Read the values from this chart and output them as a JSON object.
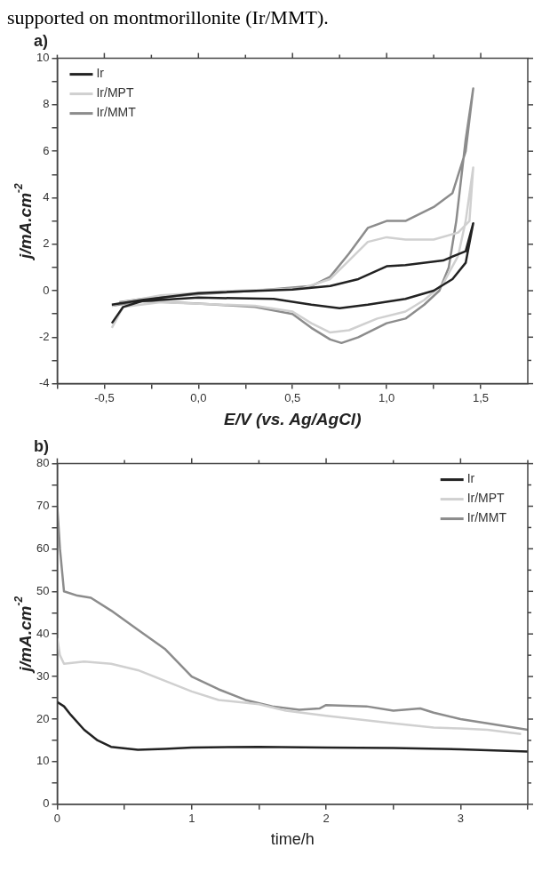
{
  "chart_data": [
    {
      "type": "line",
      "title": "a)",
      "xlabel": "E/V (vs. Ag/AgCl)",
      "ylabel": "j/mA.cm$^{-2}$",
      "annotations": [
        "supported on montmorillonite (Ir/MMT)."
      ],
      "xlim": [
        -0.75,
        1.75
      ],
      "ylim": [
        -4,
        10
      ],
      "xticks": [
        {
          "value": -0.75,
          "label": null
        },
        {
          "value": -0.5,
          "label": "-0,5"
        },
        {
          "value": -0.25,
          "label": null
        },
        {
          "value": 0,
          "label": "0,0"
        },
        {
          "value": 0.25,
          "label": null
        },
        {
          "value": 0.5,
          "label": "0,5"
        },
        {
          "value": 0.75,
          "label": null
        },
        {
          "value": 1,
          "label": "1,0"
        },
        {
          "value": 1.25,
          "label": null
        },
        {
          "value": 1.5,
          "label": "1,5"
        }
      ],
      "yticks": [
        -4,
        {
          "value": -3,
          "label": null
        },
        -2,
        {
          "value": -1,
          "label": null
        },
        0,
        {
          "value": 1,
          "label": null
        },
        2,
        {
          "value": 3,
          "label": null
        },
        4,
        {
          "value": 5,
          "label": null
        },
        6,
        {
          "value": 7,
          "label": null
        },
        8,
        {
          "value": 9,
          "label": null
        },
        10
      ],
      "grid": false,
      "legend": "top left",
      "marker": "none",
      "line_style": "solid",
      "series": [
        {
          "name": "Ir",
          "color": "#222222",
          "x": [
            -0.46,
            -0.4,
            -0.3,
            0,
            0.4,
            0.6,
            0.75,
            0.9,
            1.1,
            1.25,
            1.35,
            1.42,
            1.46,
            1.42,
            1.3,
            1.1,
            1.0,
            0.85,
            0.7,
            0.5,
            0,
            -0.3,
            -0.46
          ],
          "values": [
            -1.4,
            -0.7,
            -0.45,
            -0.3,
            -0.35,
            -0.6,
            -0.75,
            -0.6,
            -0.35,
            0,
            0.5,
            1.2,
            2.9,
            1.7,
            1.3,
            1.1,
            1.05,
            0.5,
            0.2,
            0.05,
            -0.1,
            -0.4,
            -0.6
          ]
        },
        {
          "name": "Ir/MPT",
          "color": "#d0d0d0",
          "x": [
            -0.46,
            -0.4,
            -0.2,
            0.3,
            0.5,
            0.6,
            0.7,
            0.8,
            0.95,
            1.1,
            1.2,
            1.3,
            1.38,
            1.42,
            1.46,
            1.44,
            1.38,
            1.25,
            1.1,
            1.0,
            0.9,
            0.8,
            0.7,
            0.55,
            0.2,
            -0.2,
            -0.4,
            -0.46
          ],
          "values": [
            -1.6,
            -0.7,
            -0.5,
            -0.65,
            -0.9,
            -1.4,
            -1.8,
            -1.7,
            -1.2,
            -0.9,
            -0.4,
            0.3,
            1.5,
            3,
            5.3,
            3,
            2.5,
            2.2,
            2.2,
            2.3,
            2.1,
            1.3,
            0.5,
            0.1,
            0,
            -0.2,
            -0.5,
            -0.65
          ]
        },
        {
          "name": "Ir/MMT",
          "color": "#8c8c8c",
          "x": [
            -0.46,
            -0.3,
            0,
            0.3,
            0.5,
            0.6,
            0.7,
            0.76,
            0.85,
            1.0,
            1.1,
            1.2,
            1.28,
            1.33,
            1.37,
            1.42,
            1.46,
            1.42,
            1.35,
            1.25,
            1.1,
            1.0,
            0.9,
            0.8,
            0.7,
            0.6,
            0.3,
            0,
            -0.3,
            -0.42
          ],
          "values": [
            -0.65,
            -0.45,
            -0.55,
            -0.7,
            -1.0,
            -1.6,
            -2.1,
            -2.25,
            -2.0,
            -1.4,
            -1.2,
            -0.6,
            0,
            1,
            3,
            6.5,
            8.7,
            6,
            4.2,
            3.6,
            3.0,
            3.0,
            2.7,
            1.6,
            0.6,
            0.2,
            0,
            -0.15,
            -0.35,
            -0.5
          ]
        }
      ]
    },
    {
      "type": "line",
      "title": "b)",
      "xlabel": "time/h",
      "ylabel": "j/mA.cm$^{-2}$",
      "xlim": [
        0,
        3.5
      ],
      "ylim": [
        0,
        80
      ],
      "xticks": [
        0,
        {
          "value": 0.5,
          "label": null
        },
        1,
        {
          "value": 1.5,
          "label": null
        },
        2,
        {
          "value": 2.5,
          "label": null
        },
        3,
        {
          "value": 3.5,
          "label": null
        }
      ],
      "yticks": [
        0,
        {
          "value": 5,
          "label": null
        },
        10,
        {
          "value": 15,
          "label": null
        },
        20,
        {
          "value": 25,
          "label": null
        },
        30,
        {
          "value": 35,
          "label": null
        },
        40,
        {
          "value": 45,
          "label": null
        },
        50,
        {
          "value": 55,
          "label": null
        },
        60,
        {
          "value": 65,
          "label": null
        },
        70,
        {
          "value": 75,
          "label": null
        },
        80
      ],
      "grid": false,
      "legend": "top right",
      "marker": "none",
      "line_style": "solid",
      "series": [
        {
          "name": "Ir",
          "color": "#222222",
          "x": [
            0,
            0.05,
            0.1,
            0.2,
            0.3,
            0.4,
            0.6,
            0.8,
            1.0,
            1.5,
            2.0,
            2.5,
            3.0,
            3.5
          ],
          "values": [
            24,
            23,
            21,
            17.5,
            15,
            13.5,
            12.8,
            13,
            13.3,
            13.5,
            13.3,
            13.2,
            12.9,
            12.4
          ]
        },
        {
          "name": "Ir/MPT",
          "color": "#d0d0d0",
          "x": [
            0,
            0.02,
            0.05,
            0.2,
            0.4,
            0.6,
            0.8,
            1.0,
            1.2,
            1.5,
            1.7,
            2.0,
            2.5,
            2.8,
            3.0,
            3.2,
            3.45
          ],
          "values": [
            39,
            35,
            33,
            33.5,
            33,
            31.5,
            29,
            26.5,
            24.5,
            23.5,
            22,
            20.8,
            19,
            18,
            17.8,
            17.5,
            16.5
          ]
        },
        {
          "name": "Ir/MMT",
          "color": "#8c8c8c",
          "x": [
            0,
            0.02,
            0.05,
            0.15,
            0.25,
            0.4,
            0.6,
            0.8,
            1.0,
            1.2,
            1.4,
            1.6,
            1.8,
            1.95,
            2.0,
            2.3,
            2.5,
            2.7,
            2.8,
            3.0,
            3.2,
            3.5
          ],
          "values": [
            70,
            60,
            50,
            49,
            48.5,
            45.5,
            41,
            36.5,
            30,
            27,
            24.5,
            23,
            22.2,
            22.5,
            23.3,
            23,
            22,
            22.5,
            21.5,
            20,
            19,
            17.5
          ]
        }
      ]
    }
  ]
}
